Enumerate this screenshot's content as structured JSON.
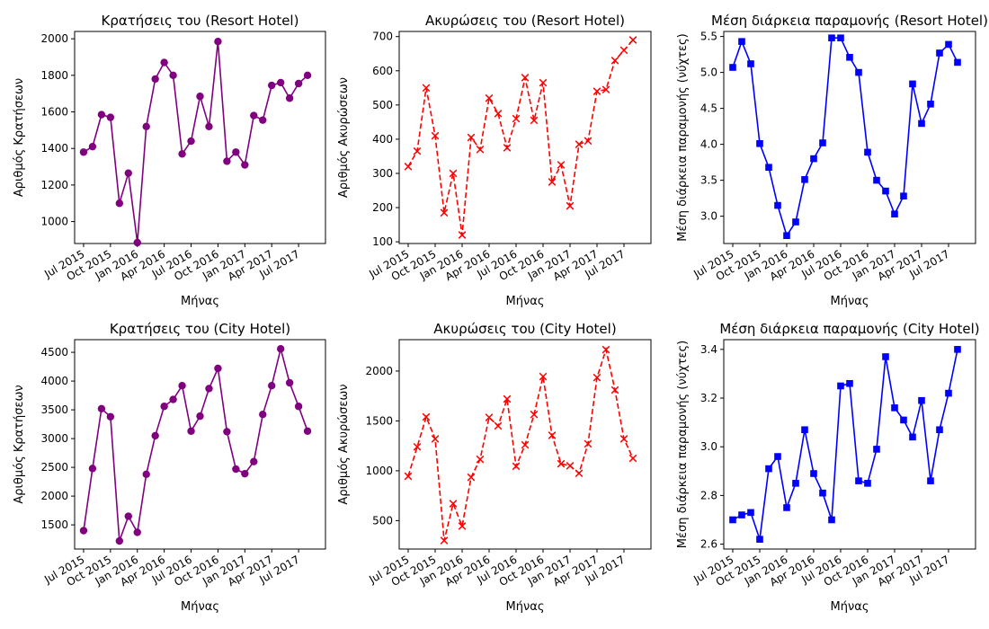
{
  "figure": {
    "background": "#ffffff"
  },
  "x_tick_labels": [
    "Jul 2015",
    "Oct 2015",
    "Jan 2016",
    "Apr 2016",
    "Jul 2016",
    "Oct 2016",
    "Jan 2017",
    "Apr 2017",
    "Jul 2017"
  ],
  "months": [
    "Jul 2015",
    "Aug 2015",
    "Sep 2015",
    "Oct 2015",
    "Nov 2015",
    "Dec 2015",
    "Jan 2016",
    "Feb 2016",
    "Mar 2016",
    "Apr 2016",
    "May 2016",
    "Jun 2016",
    "Jul 2016",
    "Aug 2016",
    "Sep 2016",
    "Oct 2016",
    "Nov 2016",
    "Dec 2016",
    "Jan 2017",
    "Feb 2017",
    "Mar 2017",
    "Apr 2017",
    "May 2017",
    "Jun 2017",
    "Jul 2017",
    "Aug 2017"
  ],
  "chart_data": [
    {
      "type": "line",
      "title": "Κρατήσεις του (Resort Hotel)",
      "xlabel": "Μήνας",
      "ylabel": "Αριθμός Κρατήσεων",
      "ylim": [
        880,
        2040
      ],
      "yticks": [
        1000,
        1200,
        1400,
        1600,
        1800,
        2000
      ],
      "color": "#800080",
      "marker": "circle",
      "linestyle": "solid",
      "values": [
        1380,
        1410,
        1585,
        1570,
        1100,
        1265,
        885,
        1520,
        1780,
        1870,
        1800,
        1370,
        1440,
        1685,
        1520,
        1985,
        1330,
        1380,
        1310,
        1580,
        1555,
        1745,
        1760,
        1675,
        1755,
        1800
      ]
    },
    {
      "type": "line",
      "title": "Ακυρώσεις του (Resort Hotel)",
      "xlabel": "Μήνας",
      "ylabel": "Αριθμός Ακυρώσεων",
      "ylim": [
        95,
        715
      ],
      "yticks": [
        100,
        200,
        300,
        400,
        500,
        600,
        700
      ],
      "color": "#ff0000",
      "marker": "x",
      "linestyle": "dashed",
      "values": [
        320,
        365,
        550,
        410,
        185,
        300,
        120,
        405,
        370,
        520,
        475,
        375,
        460,
        580,
        455,
        565,
        275,
        325,
        205,
        385,
        395,
        540,
        545,
        630,
        660,
        690
      ]
    },
    {
      "type": "line",
      "title": "Μέση διάρκεια παραμονής (Resort Hotel)",
      "xlabel": "Μήνας",
      "ylabel": "Μέση διάρκεια παραμονής (νύχτες)",
      "ylim": [
        2.62,
        5.57
      ],
      "yticks": [
        3.0,
        3.5,
        4.0,
        4.5,
        5.0,
        5.5
      ],
      "color": "#0000ff",
      "marker": "square",
      "linestyle": "solid",
      "values": [
        5.07,
        5.43,
        5.12,
        4.01,
        3.68,
        3.15,
        2.73,
        2.92,
        3.51,
        3.8,
        4.02,
        5.48,
        5.48,
        5.21,
        5.0,
        3.89,
        3.5,
        3.35,
        3.03,
        3.28,
        4.84,
        4.29,
        4.56,
        5.27,
        5.39,
        5.14
      ]
    },
    {
      "type": "line",
      "title": "Κρατήσεις του (City Hotel)",
      "xlabel": "Μήνας",
      "ylabel": "Αριθμός Κρατήσεων",
      "ylim": [
        1080,
        4720
      ],
      "yticks": [
        1500,
        2000,
        2500,
        3000,
        3500,
        4000,
        4500
      ],
      "color": "#800080",
      "marker": "circle",
      "linestyle": "solid",
      "values": [
        1400,
        2480,
        3520,
        3380,
        1220,
        1650,
        1370,
        2380,
        3050,
        3560,
        3680,
        3920,
        3130,
        3390,
        3870,
        4220,
        3120,
        2470,
        2390,
        2600,
        3420,
        3920,
        4560,
        3970,
        3560,
        3130
      ]
    },
    {
      "type": "line",
      "title": "Ακυρώσεις του (City Hotel)",
      "xlabel": "Μήνας",
      "ylabel": "Αριθμός Ακυρώσεων",
      "ylim": [
        215,
        2315
      ],
      "yticks": [
        500,
        1000,
        1500,
        2000
      ],
      "color": "#ff0000",
      "marker": "x",
      "linestyle": "dashed",
      "values": [
        945,
        1240,
        1540,
        1320,
        300,
        670,
        445,
        935,
        1115,
        1535,
        1450,
        1720,
        1045,
        1260,
        1565,
        1945,
        1355,
        1070,
        1050,
        975,
        1270,
        1935,
        2215,
        1810,
        1320,
        1125
      ]
    },
    {
      "type": "line",
      "title": "Μέση διάρκεια παραμονής (City Hotel)",
      "xlabel": "Μήνας",
      "ylabel": "Μέση διάρκεια παραμονής (νύχτες)",
      "ylim": [
        2.58,
        3.44
      ],
      "yticks": [
        2.6,
        2.8,
        3.0,
        3.2,
        3.4
      ],
      "color": "#0000ff",
      "marker": "square",
      "linestyle": "solid",
      "values": [
        2.7,
        2.72,
        2.73,
        2.62,
        2.91,
        2.96,
        2.75,
        2.85,
        3.07,
        2.89,
        2.81,
        2.7,
        3.25,
        3.26,
        2.86,
        2.85,
        2.99,
        3.37,
        3.16,
        3.11,
        3.04,
        3.19,
        2.86,
        3.07,
        3.22,
        3.4
      ]
    }
  ]
}
